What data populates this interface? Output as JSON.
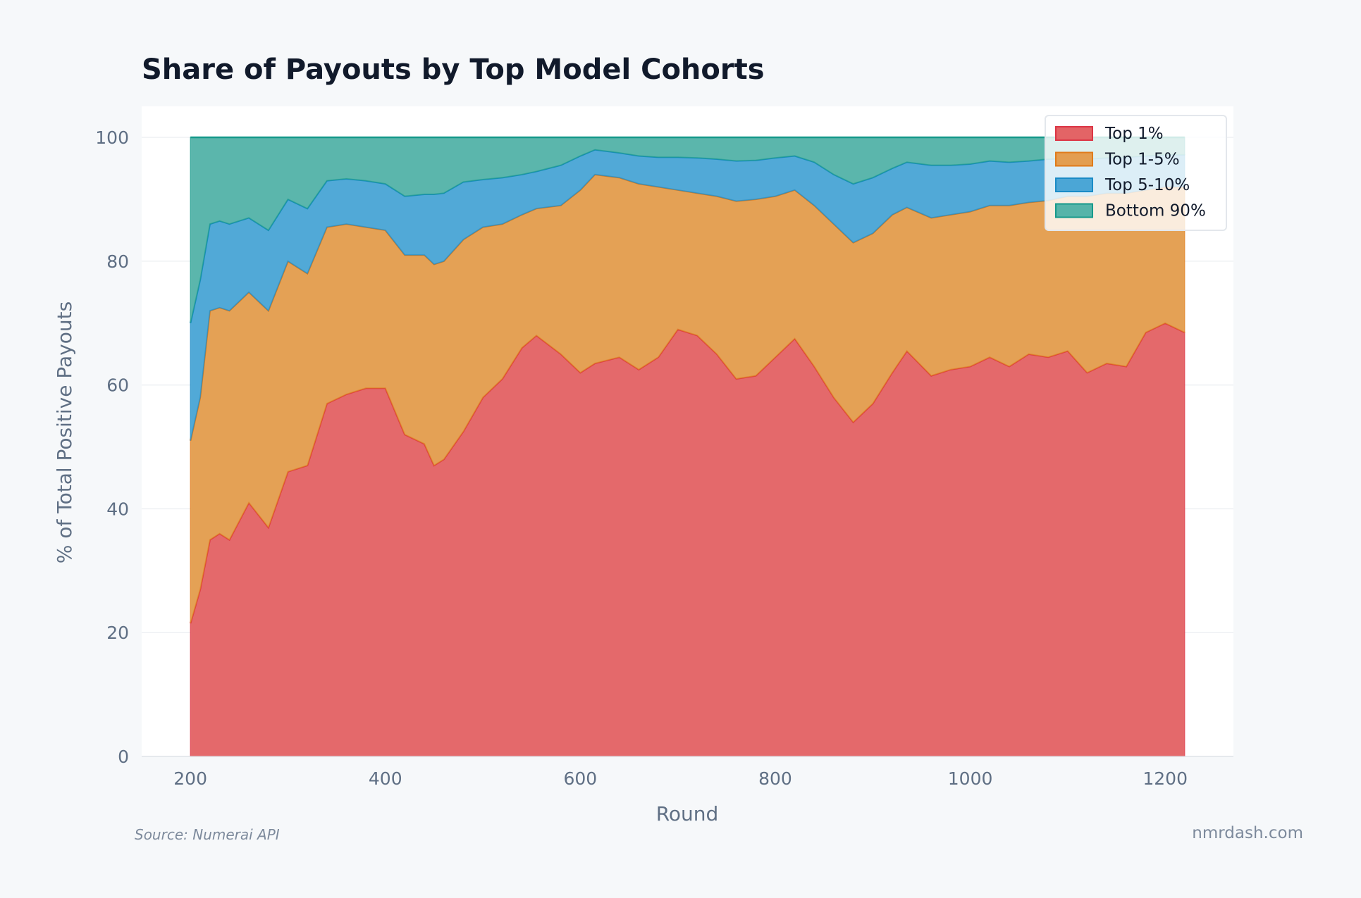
{
  "chart_data": {
    "type": "area",
    "stacked": true,
    "title": "Share of Payouts by Top Model Cohorts",
    "xlabel": "Round",
    "ylabel": "% of Total Positive Payouts",
    "xlim": [
      150,
      1270
    ],
    "ylim": [
      0,
      105
    ],
    "xticks": [
      200,
      400,
      600,
      800,
      1000,
      1200
    ],
    "yticks": [
      0,
      20,
      40,
      60,
      80,
      100
    ],
    "grid": true,
    "legend_position": "top-right",
    "x": [
      200,
      210,
      220,
      230,
      240,
      260,
      280,
      300,
      320,
      340,
      360,
      380,
      400,
      420,
      440,
      450,
      460,
      480,
      500,
      520,
      540,
      555,
      580,
      600,
      615,
      640,
      660,
      680,
      700,
      720,
      740,
      760,
      780,
      800,
      820,
      840,
      860,
      880,
      900,
      920,
      935,
      960,
      980,
      1000,
      1020,
      1040,
      1060,
      1080,
      1100,
      1120,
      1140,
      1160,
      1180,
      1200,
      1220
    ],
    "series": [
      {
        "name": "Top 1%",
        "color": "#dc3545",
        "fill": "#e36466",
        "values": [
          21.5,
          27,
          35,
          36,
          35,
          41,
          37,
          46,
          47,
          57,
          58.5,
          59.5,
          59.5,
          52,
          50.5,
          47,
          48,
          52.5,
          58,
          61,
          66,
          68,
          65,
          62,
          63.5,
          64.5,
          62.5,
          64.5,
          69,
          68,
          65,
          61,
          61.5,
          64.5,
          67.5,
          63,
          58,
          54,
          57,
          62,
          65.5,
          61.5,
          62.5,
          63,
          64.5,
          63,
          65,
          64.5,
          65.5,
          62,
          63.5,
          63,
          68.5,
          70,
          68.5
        ]
      },
      {
        "name": "Top 1-5%",
        "color": "#e07b1a",
        "fill": "#e39e50",
        "values": [
          29.5,
          31,
          37,
          36.5,
          37,
          34,
          35,
          34,
          31,
          28.5,
          27.5,
          26,
          25.5,
          29,
          30.5,
          32.5,
          32,
          31,
          27.5,
          25,
          21.5,
          20.5,
          24,
          29.5,
          30.5,
          29,
          30,
          27.5,
          22.5,
          23,
          25.5,
          28.7,
          28.5,
          26,
          24,
          26,
          28,
          29,
          27.5,
          25.5,
          23.2,
          25.5,
          25,
          25,
          24.5,
          26,
          24.5,
          25.3,
          25,
          28.5,
          27.5,
          28,
          23,
          22,
          23.5
        ]
      },
      {
        "name": "Top 5-10%",
        "color": "#1a8bc6",
        "fill": "#4ba6d6",
        "values": [
          19,
          19,
          14,
          14,
          14,
          12,
          13,
          10,
          10.5,
          7.5,
          7.3,
          7.5,
          7.5,
          9.5,
          9.8,
          11.3,
          11,
          9.3,
          7.7,
          7.5,
          6.5,
          6,
          6.5,
          5.5,
          4,
          4,
          4.5,
          4.8,
          5.3,
          5.7,
          6,
          6.5,
          6.3,
          6.2,
          5.5,
          7,
          8,
          9.5,
          9,
          7.5,
          7.3,
          8.5,
          8,
          7.7,
          7.2,
          7,
          6.7,
          6.7,
          6.1,
          6,
          5.7,
          5.8,
          5.5,
          5.2,
          5.2
        ]
      },
      {
        "name": "Bottom 90%",
        "color": "#16998a",
        "fill": "#56b4a9",
        "values": [
          30,
          23,
          14,
          13.5,
          14,
          13,
          15,
          10,
          11.5,
          7,
          6.7,
          7,
          7.5,
          9.5,
          9.2,
          9.2,
          9,
          7.2,
          6.8,
          6.5,
          6,
          5.5,
          4.5,
          3,
          2,
          2.5,
          3,
          3.2,
          3.2,
          3.3,
          3.5,
          3.8,
          3.7,
          3.3,
          3,
          4,
          6,
          7.5,
          6.5,
          5,
          4,
          4.5,
          4.5,
          4.3,
          3.8,
          4,
          3.8,
          3.5,
          3.4,
          3.5,
          3.3,
          3.2,
          3,
          2.8,
          2.8
        ]
      }
    ]
  },
  "footer": {
    "source": "Source: Numerai API",
    "brand": "nmrdash.com"
  }
}
